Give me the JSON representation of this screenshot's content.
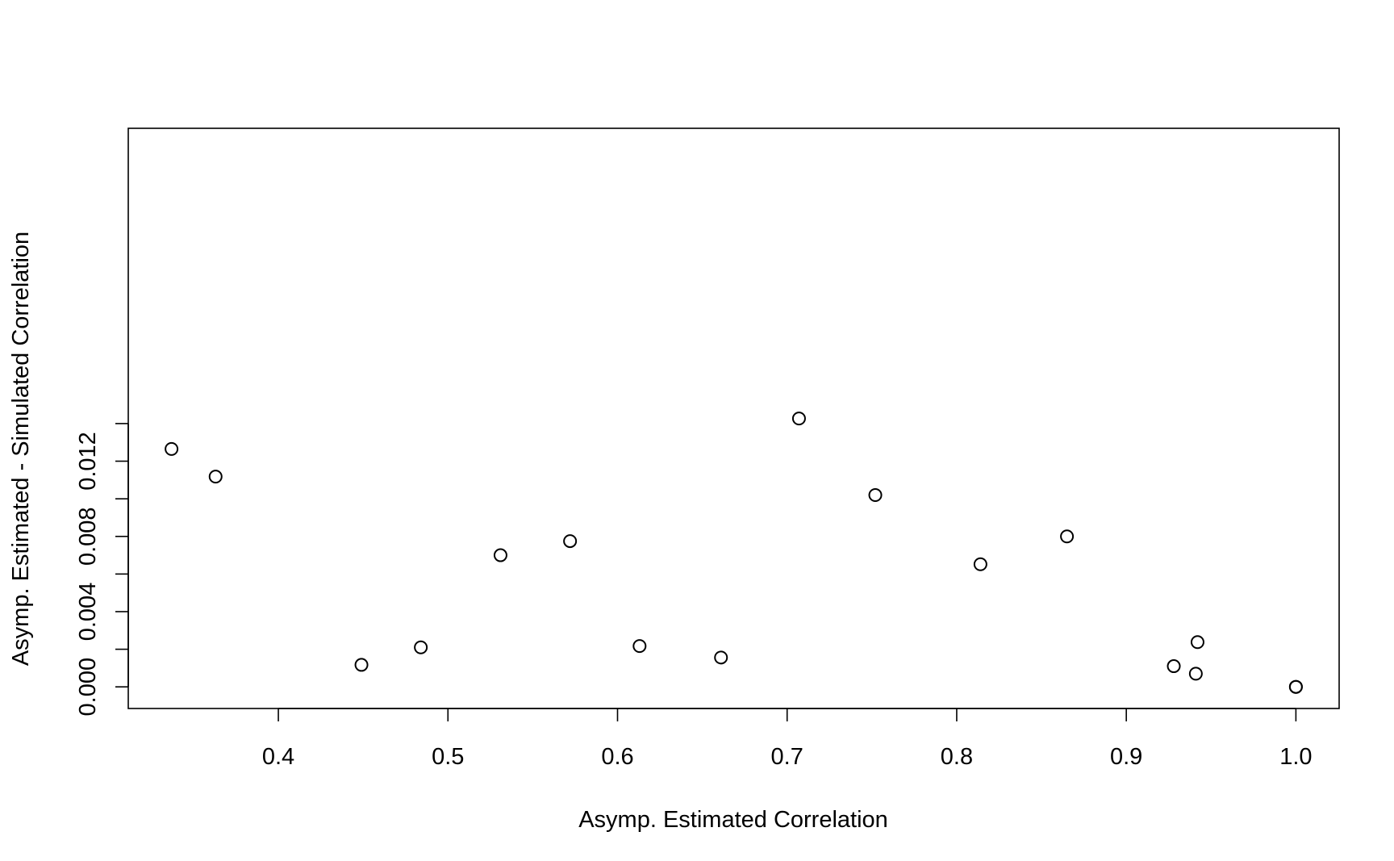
{
  "chart_data": {
    "type": "scatter",
    "title": "",
    "xlabel": "Asymp. Estimated Correlation",
    "ylabel": "Asymp. Estimated - Simulated Correlation",
    "xlim": [
      0.3115,
      1.0255
    ],
    "ylim": [
      -0.00115,
      0.0297
    ],
    "xticks": [
      0.4,
      0.5,
      0.6,
      0.7,
      0.8,
      0.9,
      1.0
    ],
    "xtick_labels": [
      "0.4",
      "0.5",
      "0.6",
      "0.7",
      "0.8",
      "0.9",
      "1.0"
    ],
    "yticks": [
      0.0,
      0.002,
      0.004,
      0.006,
      0.008,
      0.01,
      0.012,
      0.014
    ],
    "ytick_labels": [
      "0.000",
      "",
      "0.004",
      "",
      "0.008",
      "",
      "0.012",
      ""
    ],
    "grid": false,
    "points": [
      {
        "x": 0.337,
        "y": 0.01265
      },
      {
        "x": 0.363,
        "y": 0.01118
      },
      {
        "x": 0.449,
        "y": 0.00117
      },
      {
        "x": 0.484,
        "y": 0.0021
      },
      {
        "x": 0.531,
        "y": 0.007
      },
      {
        "x": 0.572,
        "y": 0.00775
      },
      {
        "x": 0.613,
        "y": 0.00217
      },
      {
        "x": 0.661,
        "y": 0.00156
      },
      {
        "x": 0.707,
        "y": 0.01427
      },
      {
        "x": 0.752,
        "y": 0.0102
      },
      {
        "x": 0.814,
        "y": 0.00652
      },
      {
        "x": 0.865,
        "y": 0.008
      },
      {
        "x": 0.928,
        "y": 0.0011
      },
      {
        "x": 0.941,
        "y": 0.0007
      },
      {
        "x": 0.942,
        "y": 0.00238
      },
      {
        "x": 1.0,
        "y": 0.0
      },
      {
        "x": 1.0,
        "y": 0.0
      }
    ]
  }
}
